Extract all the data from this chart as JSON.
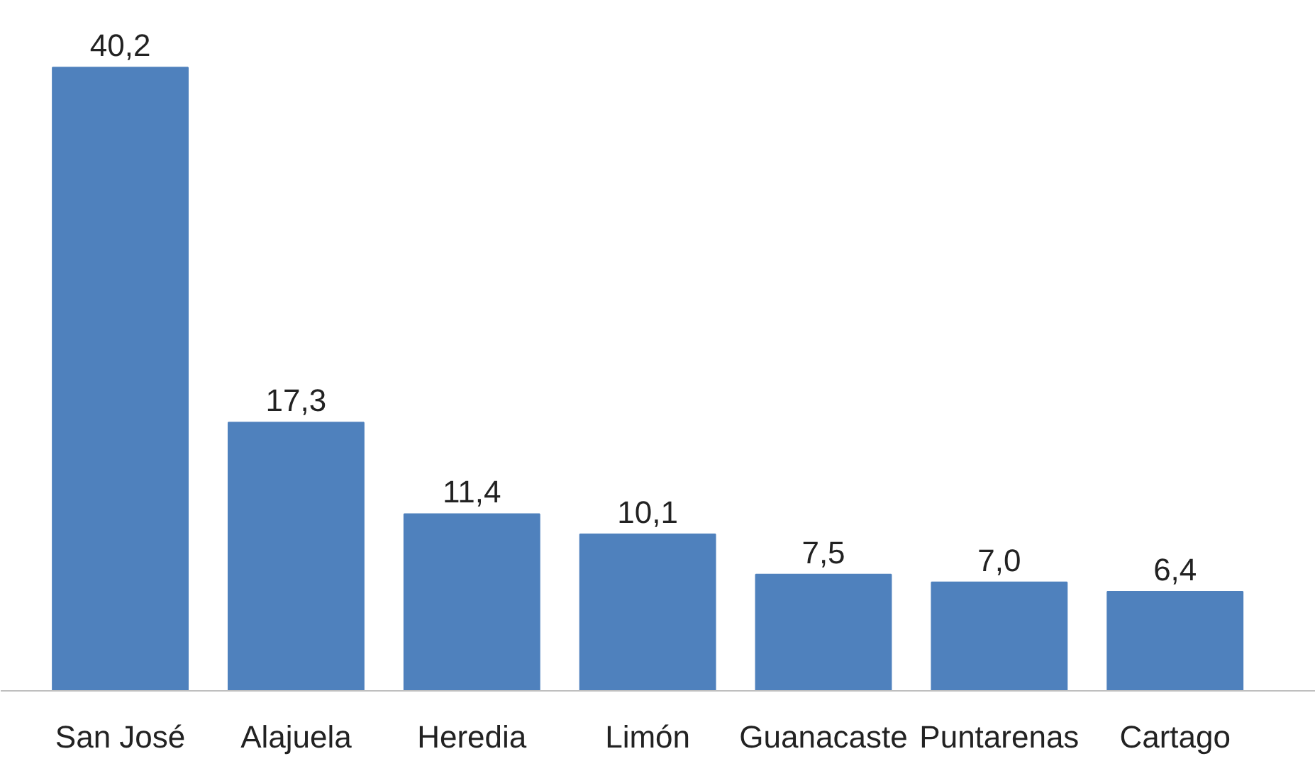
{
  "chart_data": {
    "type": "bar",
    "categories": [
      "San José",
      "Alajuela",
      "Heredia",
      "Limón",
      "Guanacaste",
      "Puntarenas",
      "Cartago"
    ],
    "values": [
      40.2,
      17.3,
      11.4,
      10.1,
      7.5,
      7.0,
      6.4
    ],
    "value_labels": [
      "40,2",
      "17,3",
      "11,4",
      "10,1",
      "7,5",
      "7,0",
      "6,4"
    ],
    "color": "#4f81bd",
    "grid": false
  }
}
